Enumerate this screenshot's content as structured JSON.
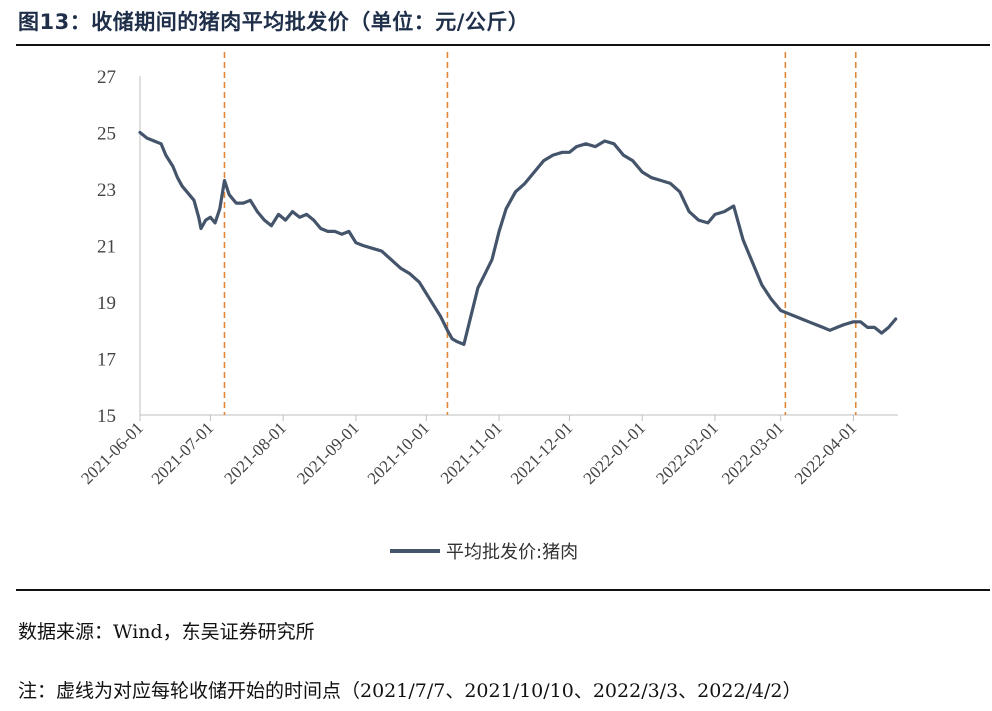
{
  "figure": {
    "title": "图13：收储期间的猪肉平均批发价（单位：元/公斤）"
  },
  "source_text": "数据来源：Wind，东吴证券研究所",
  "note_text": "注：虚线为对应每轮收储开始的时间点（2021/7/7、2021/10/10、2022/3/3、2022/4/2）",
  "chart_data": {
    "type": "line",
    "title": "",
    "xlabel": "",
    "ylabel": "",
    "ylim": [
      15,
      27
    ],
    "yticks": [
      15,
      17,
      19,
      21,
      23,
      25,
      27
    ],
    "xlim": [
      "2021-06-01",
      "2022-04-20"
    ],
    "xticks": [
      "2021-06-01",
      "2021-07-01",
      "2021-08-01",
      "2021-09-01",
      "2021-10-01",
      "2021-11-01",
      "2021-12-01",
      "2022-01-01",
      "2022-02-01",
      "2022-03-01",
      "2022-04-01"
    ],
    "grid": false,
    "legend": "bottom-center",
    "line_color": "#44546a",
    "marker_color": "#e0873a",
    "markers": [
      "2021-07-07",
      "2021-10-10",
      "2022-03-03",
      "2022-04-02"
    ],
    "series": [
      {
        "name": "平均批发价:猪肉",
        "x": [
          "2021-06-01",
          "2021-06-04",
          "2021-06-07",
          "2021-06-10",
          "2021-06-12",
          "2021-06-15",
          "2021-06-17",
          "2021-06-19",
          "2021-06-22",
          "2021-06-24",
          "2021-06-26",
          "2021-06-27",
          "2021-06-29",
          "2021-07-01",
          "2021-07-03",
          "2021-07-05",
          "2021-07-07",
          "2021-07-09",
          "2021-07-12",
          "2021-07-15",
          "2021-07-18",
          "2021-07-21",
          "2021-07-24",
          "2021-07-27",
          "2021-07-30",
          "2021-08-02",
          "2021-08-05",
          "2021-08-08",
          "2021-08-11",
          "2021-08-14",
          "2021-08-17",
          "2021-08-20",
          "2021-08-23",
          "2021-08-26",
          "2021-08-29",
          "2021-09-01",
          "2021-09-04",
          "2021-09-08",
          "2021-09-12",
          "2021-09-16",
          "2021-09-20",
          "2021-09-24",
          "2021-09-28",
          "2021-10-01",
          "2021-10-04",
          "2021-10-07",
          "2021-10-10",
          "2021-10-12",
          "2021-10-14",
          "2021-10-17",
          "2021-10-20",
          "2021-10-23",
          "2021-10-26",
          "2021-10-29",
          "2021-11-01",
          "2021-11-04",
          "2021-11-08",
          "2021-11-12",
          "2021-11-16",
          "2021-11-20",
          "2021-11-24",
          "2021-11-28",
          "2021-12-01",
          "2021-12-04",
          "2021-12-08",
          "2021-12-12",
          "2021-12-16",
          "2021-12-20",
          "2021-12-24",
          "2021-12-28",
          "2022-01-01",
          "2022-01-05",
          "2022-01-09",
          "2022-01-13",
          "2022-01-17",
          "2022-01-21",
          "2022-01-25",
          "2022-01-29",
          "2022-02-01",
          "2022-02-05",
          "2022-02-09",
          "2022-02-13",
          "2022-02-17",
          "2022-02-21",
          "2022-02-25",
          "2022-03-01",
          "2022-03-04",
          "2022-03-07",
          "2022-03-10",
          "2022-03-13",
          "2022-03-16",
          "2022-03-19",
          "2022-03-22",
          "2022-03-25",
          "2022-03-28",
          "2022-04-01",
          "2022-04-04",
          "2022-04-07",
          "2022-04-10",
          "2022-04-13",
          "2022-04-16",
          "2022-04-19"
        ],
        "values": [
          25.0,
          24.8,
          24.7,
          24.6,
          24.2,
          23.8,
          23.4,
          23.1,
          22.8,
          22.6,
          22.0,
          21.6,
          21.9,
          22.0,
          21.8,
          22.3,
          23.3,
          22.8,
          22.5,
          22.5,
          22.6,
          22.2,
          21.9,
          21.7,
          22.1,
          21.9,
          22.2,
          22.0,
          22.1,
          21.9,
          21.6,
          21.5,
          21.5,
          21.4,
          21.5,
          21.1,
          21.0,
          20.9,
          20.8,
          20.5,
          20.2,
          20.0,
          19.7,
          19.3,
          18.9,
          18.5,
          18.0,
          17.7,
          17.6,
          17.5,
          18.5,
          19.5,
          20.0,
          20.5,
          21.5,
          22.3,
          22.9,
          23.2,
          23.6,
          24.0,
          24.2,
          24.3,
          24.3,
          24.5,
          24.6,
          24.5,
          24.7,
          24.6,
          24.2,
          24.0,
          23.6,
          23.4,
          23.3,
          23.2,
          22.9,
          22.2,
          21.9,
          21.8,
          22.1,
          22.2,
          22.4,
          21.2,
          20.4,
          19.6,
          19.1,
          18.7,
          18.6,
          18.5,
          18.4,
          18.3,
          18.2,
          18.1,
          18.0,
          18.1,
          18.2,
          18.3,
          18.3,
          18.1,
          18.1,
          17.9,
          18.1,
          18.4
        ]
      }
    ]
  }
}
